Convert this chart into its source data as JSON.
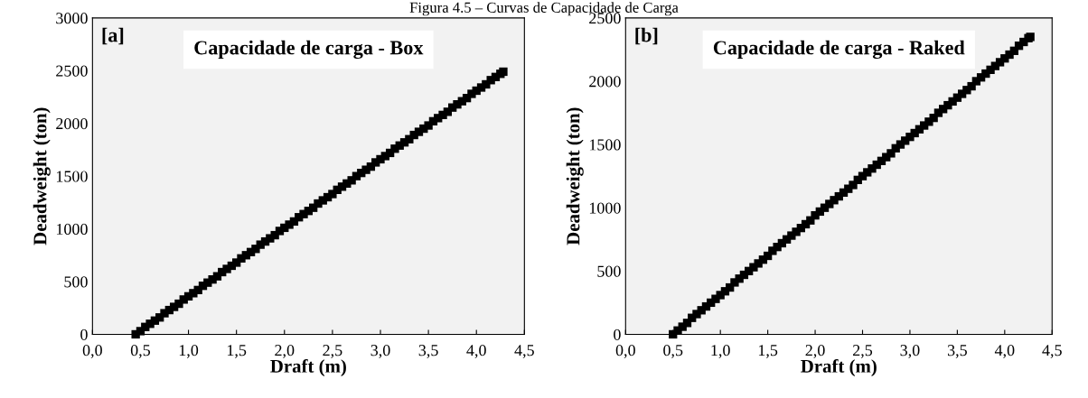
{
  "chart_data": [
    {
      "type": "scatter",
      "title": "Capacidade de carga - Box",
      "xlabel": "Draft (m)",
      "ylabel": "Deadweight (ton)",
      "annotations": [
        "[a]",
        "Figura 4.5 – Curvas de Capacidade de Carga"
      ],
      "marker": "square",
      "grid": false,
      "legend": false,
      "xlim": [
        0,
        4.5
      ],
      "ylim": [
        0,
        3000
      ],
      "xticks": [
        {
          "value": 0,
          "label": "0,0"
        },
        {
          "value": 0.5,
          "label": "0,5"
        },
        {
          "value": 1,
          "label": "1,0"
        },
        {
          "value": 1.5,
          "label": "1,5"
        },
        {
          "value": 2,
          "label": "2,0"
        },
        {
          "value": 2.5,
          "label": "2,5"
        },
        {
          "value": 3,
          "label": "3,0"
        },
        {
          "value": 3.5,
          "label": "3,5"
        },
        {
          "value": 4,
          "label": "4,0"
        },
        {
          "value": 4.5,
          "label": "4,5"
        }
      ],
      "yticks": [
        0,
        500,
        1000,
        1500,
        2000,
        2500,
        3000
      ],
      "series": [
        {
          "color": "#000000",
          "x": [
            0.45,
            0.5,
            0.55,
            0.6,
            0.65,
            0.7,
            0.75,
            0.8,
            0.85,
            0.9,
            0.95,
            1.0,
            1.05,
            1.1,
            1.15,
            1.2,
            1.25,
            1.3,
            1.35,
            1.4,
            1.45,
            1.5,
            1.55,
            1.6,
            1.65,
            1.7,
            1.75,
            1.8,
            1.85,
            1.9,
            1.95,
            2.0,
            2.05,
            2.1,
            2.15,
            2.2,
            2.25,
            2.3,
            2.35,
            2.4,
            2.45,
            2.5,
            2.55,
            2.6,
            2.65,
            2.7,
            2.75,
            2.8,
            2.85,
            2.9,
            2.95,
            3.0,
            3.05,
            3.1,
            3.15,
            3.2,
            3.25,
            3.3,
            3.35,
            3.4,
            3.45,
            3.5,
            3.55,
            3.6,
            3.65,
            3.7,
            3.75,
            3.8,
            3.85,
            3.9,
            3.95,
            4.0,
            4.05,
            4.1,
            4.15,
            4.2,
            4.25,
            4.28
          ],
          "values": [
            0,
            30,
            70,
            100,
            130,
            160,
            200,
            230,
            260,
            290,
            330,
            360,
            390,
            420,
            460,
            490,
            520,
            550,
            590,
            620,
            650,
            680,
            720,
            750,
            780,
            810,
            850,
            880,
            910,
            940,
            980,
            1010,
            1040,
            1070,
            1110,
            1140,
            1170,
            1200,
            1240,
            1270,
            1300,
            1330,
            1370,
            1400,
            1430,
            1460,
            1500,
            1530,
            1560,
            1590,
            1630,
            1660,
            1690,
            1720,
            1760,
            1790,
            1820,
            1850,
            1890,
            1920,
            1950,
            1980,
            2020,
            2050,
            2080,
            2110,
            2150,
            2180,
            2210,
            2240,
            2280,
            2310,
            2340,
            2370,
            2410,
            2440,
            2470,
            2490
          ]
        }
      ]
    },
    {
      "type": "scatter",
      "title": "Capacidade de carga - Raked",
      "xlabel": "Draft (m)",
      "ylabel": "Deadweight (ton)",
      "annotations": [
        "[b]"
      ],
      "marker": "square",
      "grid": false,
      "legend": false,
      "xlim": [
        0,
        4.5
      ],
      "ylim": [
        0,
        2500
      ],
      "xticks": [
        {
          "value": 0,
          "label": "0,0"
        },
        {
          "value": 0.5,
          "label": "0,5"
        },
        {
          "value": 1,
          "label": "1,0"
        },
        {
          "value": 1.5,
          "label": "1,5"
        },
        {
          "value": 2,
          "label": "2,0"
        },
        {
          "value": 2.5,
          "label": "2,5"
        },
        {
          "value": 3,
          "label": "3,0"
        },
        {
          "value": 3.5,
          "label": "3,5"
        },
        {
          "value": 4,
          "label": "4,0"
        },
        {
          "value": 4.5,
          "label": "4,5"
        }
      ],
      "yticks": [
        0,
        500,
        1000,
        1500,
        2000,
        2500
      ],
      "series": [
        {
          "color": "#000000",
          "x": [
            0.5,
            0.55,
            0.6,
            0.65,
            0.7,
            0.75,
            0.8,
            0.85,
            0.9,
            0.95,
            1.0,
            1.05,
            1.1,
            1.15,
            1.2,
            1.25,
            1.3,
            1.35,
            1.4,
            1.45,
            1.5,
            1.55,
            1.6,
            1.65,
            1.7,
            1.75,
            1.8,
            1.85,
            1.9,
            1.95,
            2.0,
            2.05,
            2.1,
            2.15,
            2.2,
            2.25,
            2.3,
            2.35,
            2.4,
            2.45,
            2.5,
            2.55,
            2.6,
            2.65,
            2.7,
            2.75,
            2.8,
            2.85,
            2.9,
            2.95,
            3.0,
            3.05,
            3.1,
            3.15,
            3.2,
            3.25,
            3.3,
            3.35,
            3.4,
            3.45,
            3.5,
            3.55,
            3.6,
            3.65,
            3.7,
            3.75,
            3.8,
            3.85,
            3.9,
            3.95,
            4.0,
            4.05,
            4.1,
            4.15,
            4.2,
            4.25,
            4.27
          ],
          "values": [
            0,
            30,
            60,
            90,
            130,
            160,
            190,
            220,
            250,
            280,
            310,
            340,
            370,
            410,
            440,
            470,
            500,
            530,
            560,
            590,
            620,
            660,
            690,
            720,
            750,
            780,
            810,
            840,
            870,
            900,
            940,
            970,
            1000,
            1030,
            1060,
            1090,
            1120,
            1150,
            1180,
            1220,
            1250,
            1280,
            1310,
            1340,
            1370,
            1400,
            1430,
            1470,
            1500,
            1530,
            1560,
            1590,
            1620,
            1650,
            1680,
            1710,
            1750,
            1780,
            1810,
            1840,
            1870,
            1900,
            1930,
            1960,
            2000,
            2030,
            2060,
            2090,
            2120,
            2150,
            2180,
            2210,
            2240,
            2280,
            2310,
            2340,
            2350
          ]
        }
      ]
    }
  ]
}
